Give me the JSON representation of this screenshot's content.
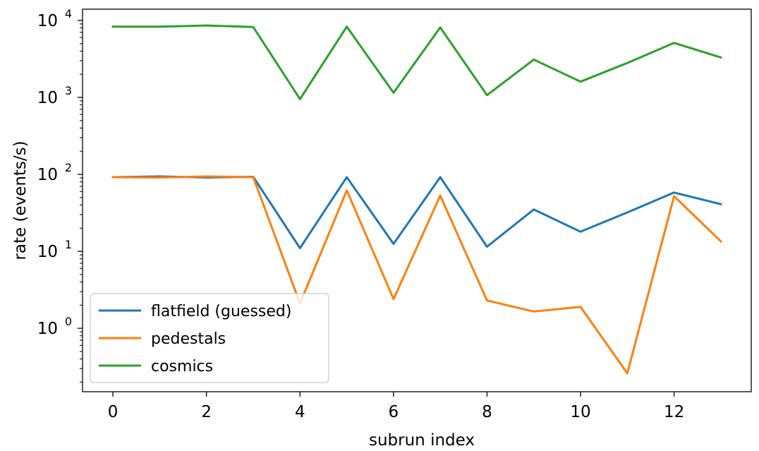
{
  "chart_data": {
    "type": "line",
    "title": "",
    "xlabel": "subrun index",
    "ylabel": "rate (events/s)",
    "yscale": "log",
    "xlim": [
      -0.65,
      13.65
    ],
    "ylim": [
      0.15,
      14000
    ],
    "xticks": [
      0,
      2,
      4,
      6,
      8,
      10,
      12
    ],
    "xtick_labels": [
      "0",
      "2",
      "4",
      "6",
      "8",
      "10",
      "12"
    ],
    "yticks": [
      1,
      10,
      100,
      1000,
      10000
    ],
    "ytick_labels": [
      {
        "base": "10",
        "exp": "0"
      },
      {
        "base": "10",
        "exp": "1"
      },
      {
        "base": "10",
        "exp": "2"
      },
      {
        "base": "10",
        "exp": "3"
      },
      {
        "base": "10",
        "exp": "4"
      }
    ],
    "x": [
      0,
      1,
      2,
      3,
      4,
      5,
      6,
      7,
      8,
      9,
      10,
      11,
      12,
      13
    ],
    "series": [
      {
        "name": "flatfield (guessed)",
        "color": "#1f77b4",
        "values": [
          92,
          94,
          91,
          93,
          11,
          92,
          12.5,
          92,
          11.5,
          35,
          18,
          32,
          58,
          41
        ]
      },
      {
        "name": "pedestals",
        "color": "#ff7f0e",
        "values": [
          92,
          91,
          94,
          92,
          2.1,
          62,
          2.4,
          53,
          2.3,
          1.65,
          1.9,
          0.26,
          52,
          13.5
        ]
      },
      {
        "name": "cosmics",
        "color": "#2ca02c",
        "values": [
          8300,
          8300,
          8600,
          8200,
          950,
          8300,
          1150,
          8100,
          1070,
          3100,
          1600,
          2800,
          5100,
          3300
        ]
      }
    ],
    "legend": {
      "placement": "lower-left"
    },
    "grid": false
  }
}
